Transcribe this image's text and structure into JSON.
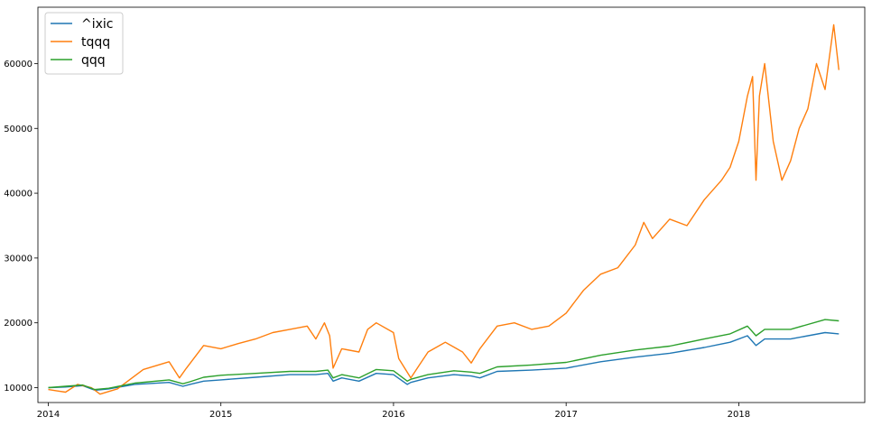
{
  "chart_data": {
    "type": "line",
    "title": "",
    "xlabel": "",
    "ylabel": "",
    "xlim": [
      2013.94,
      2018.73
    ],
    "ylim": [
      7700,
      68700
    ],
    "grid": false,
    "legend_position": "top-left",
    "x_ticks": [
      {
        "value": 2014,
        "label": "2014"
      },
      {
        "value": 2015,
        "label": "2015"
      },
      {
        "value": 2016,
        "label": "2016"
      },
      {
        "value": 2017,
        "label": "2017"
      },
      {
        "value": 2018,
        "label": "2018"
      }
    ],
    "y_ticks": [
      {
        "value": 10000,
        "label": "10000"
      },
      {
        "value": 20000,
        "label": "20000"
      },
      {
        "value": 30000,
        "label": "30000"
      },
      {
        "value": 40000,
        "label": "40000"
      },
      {
        "value": 50000,
        "label": "50000"
      },
      {
        "value": 60000,
        "label": "60000"
      }
    ],
    "series": [
      {
        "name": "^ixic",
        "color": "#1f77b4",
        "x": [
          2014.0,
          2014.1,
          2014.2,
          2014.27,
          2014.35,
          2014.5,
          2014.7,
          2014.78,
          2014.82,
          2014.9,
          2015.0,
          2015.2,
          2015.4,
          2015.55,
          2015.62,
          2015.65,
          2015.7,
          2015.8,
          2015.9,
          2016.0,
          2016.08,
          2016.1,
          2016.2,
          2016.35,
          2016.45,
          2016.5,
          2016.6,
          2016.8,
          2017.0,
          2017.2,
          2017.4,
          2017.6,
          2017.8,
          2017.95,
          2018.05,
          2018.1,
          2018.15,
          2018.3,
          2018.5,
          2018.58
        ],
        "y": [
          10000,
          10100,
          10300,
          9600,
          9800,
          10500,
          10800,
          10200,
          10500,
          11000,
          11200,
          11600,
          12000,
          12000,
          12200,
          11000,
          11500,
          11000,
          12200,
          12000,
          10500,
          10800,
          11500,
          12000,
          11800,
          11500,
          12500,
          12700,
          13000,
          14000,
          14700,
          15300,
          16200,
          17000,
          18000,
          16500,
          17500,
          17500,
          18500,
          18300
        ]
      },
      {
        "name": "tqqq",
        "color": "#ff7f0e",
        "x": [
          2014.0,
          2014.05,
          2014.1,
          2014.17,
          2014.25,
          2014.3,
          2014.4,
          2014.55,
          2014.7,
          2014.76,
          2014.8,
          2014.9,
          2015.0,
          2015.1,
          2015.2,
          2015.3,
          2015.4,
          2015.5,
          2015.55,
          2015.6,
          2015.63,
          2015.65,
          2015.7,
          2015.8,
          2015.85,
          2015.9,
          2016.0,
          2016.03,
          2016.1,
          2016.15,
          2016.2,
          2016.3,
          2016.4,
          2016.45,
          2016.5,
          2016.6,
          2016.7,
          2016.8,
          2016.9,
          2017.0,
          2017.1,
          2017.2,
          2017.3,
          2017.4,
          2017.45,
          2017.5,
          2017.6,
          2017.7,
          2017.8,
          2017.9,
          2017.95,
          2018.0,
          2018.05,
          2018.08,
          2018.1,
          2018.12,
          2018.15,
          2018.2,
          2018.25,
          2018.3,
          2018.35,
          2018.4,
          2018.45,
          2018.5,
          2018.55,
          2018.58
        ],
        "y": [
          9700,
          9500,
          9300,
          10500,
          10000,
          9000,
          9800,
          12800,
          14000,
          11500,
          13000,
          16500,
          16000,
          16800,
          17500,
          18500,
          19000,
          19500,
          17500,
          20000,
          18000,
          13000,
          16000,
          15500,
          19000,
          20000,
          18500,
          14500,
          11500,
          13500,
          15500,
          17000,
          15500,
          13800,
          16000,
          19500,
          20000,
          19000,
          19500,
          21500,
          25000,
          27500,
          28500,
          32000,
          35500,
          33000,
          36000,
          35000,
          39000,
          42000,
          44000,
          48000,
          55000,
          58000,
          42000,
          55000,
          60000,
          48000,
          42000,
          45000,
          50000,
          53000,
          60000,
          56000,
          66000,
          59000
        ]
      },
      {
        "name": "qqq",
        "color": "#2ca02c",
        "x": [
          2014.0,
          2014.1,
          2014.2,
          2014.27,
          2014.35,
          2014.5,
          2014.7,
          2014.78,
          2014.82,
          2014.9,
          2015.0,
          2015.2,
          2015.4,
          2015.55,
          2015.62,
          2015.65,
          2015.7,
          2015.8,
          2015.9,
          2016.0,
          2016.08,
          2016.1,
          2016.2,
          2016.35,
          2016.45,
          2016.5,
          2016.6,
          2016.8,
          2017.0,
          2017.2,
          2017.4,
          2017.6,
          2017.8,
          2017.95,
          2018.05,
          2018.1,
          2018.15,
          2018.3,
          2018.5,
          2018.58
        ],
        "y": [
          10000,
          10200,
          10400,
          9700,
          9900,
          10700,
          11200,
          10600,
          10900,
          11600,
          11900,
          12200,
          12500,
          12500,
          12700,
          11500,
          12000,
          11500,
          12800,
          12600,
          11000,
          11300,
          12000,
          12600,
          12400,
          12200,
          13200,
          13500,
          13900,
          15000,
          15800,
          16400,
          17500,
          18300,
          19500,
          18000,
          19000,
          19000,
          20500,
          20300
        ]
      }
    ]
  }
}
